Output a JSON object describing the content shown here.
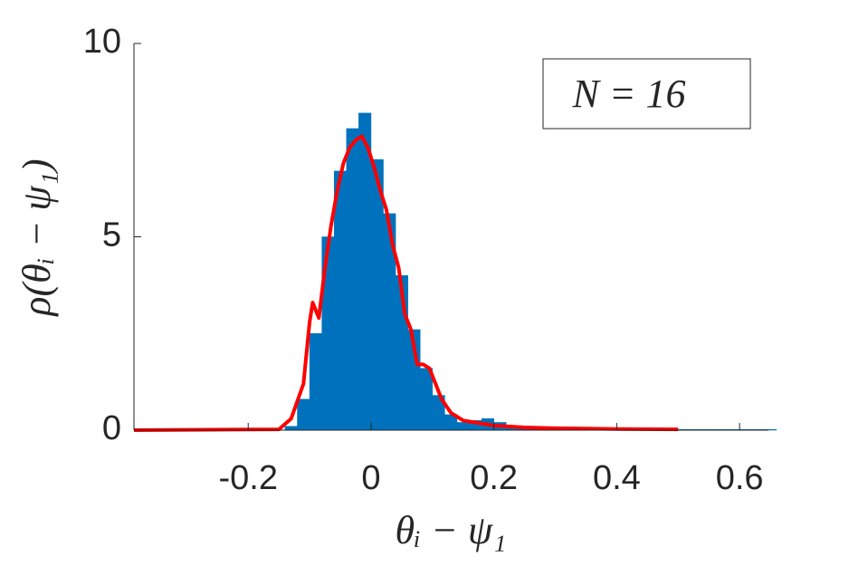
{
  "chart_data": {
    "type": "histogram",
    "xlabel": "θᵢ − ψ₁",
    "ylabel": "ρ(θᵢ − ψ₁)",
    "annotation": "N = 16",
    "bins": [
      -0.14,
      -0.12,
      -0.1,
      -0.08,
      -0.06,
      -0.04,
      -0.02,
      0,
      0.02,
      0.04,
      0.06,
      0.08,
      0.1,
      0.12,
      0.14,
      0.16,
      0.18,
      0.2,
      0.22,
      0.24,
      0.26,
      0.28,
      0.3,
      0.32,
      0.34,
      0.36,
      0.38,
      0.4,
      0.42,
      0.44,
      0.46,
      0.48,
      0.5,
      0.52,
      0.54,
      0.56,
      0.58,
      0.6,
      0.62,
      0.64,
      0.66
    ],
    "values": [
      0.1,
      0.8,
      2.5,
      5.0,
      6.7,
      7.8,
      8.2,
      7.0,
      5.6,
      4.0,
      2.6,
      1.6,
      0.9,
      0.4,
      0.2,
      0.25,
      0.3,
      0.2,
      0.1,
      0.06,
      0.05,
      0.04,
      0.04,
      0.03,
      0.03,
      0.03,
      0.02,
      0.02,
      0.02,
      0.02,
      0.02,
      0.02,
      0.02,
      0.02,
      0.02,
      0.02,
      0.02,
      0.02,
      0.02,
      0.02
    ],
    "color": "#0072bd",
    "line": {
      "color": "#ff0000",
      "x": [
        -0.386,
        -0.15,
        -0.13,
        -0.11,
        -0.1,
        -0.095,
        -0.085,
        -0.075,
        -0.065,
        -0.055,
        -0.045,
        -0.035,
        -0.025,
        -0.015,
        -0.005,
        0.005,
        0.015,
        0.025,
        0.035,
        0.045,
        0.055,
        0.065,
        0.075,
        0.085,
        0.095,
        0.105,
        0.115,
        0.13,
        0.15,
        0.2,
        0.25,
        0.3,
        0.4,
        0.5
      ],
      "values": [
        0,
        0.02,
        0.3,
        1.2,
        2.8,
        3.3,
        2.9,
        4.2,
        5.3,
        6.2,
        6.9,
        7.3,
        7.5,
        7.6,
        7.3,
        6.8,
        6.2,
        5.7,
        4.8,
        4.2,
        3.0,
        2.6,
        1.7,
        1.7,
        1.6,
        1.2,
        0.8,
        0.45,
        0.25,
        0.12,
        0.07,
        0.05,
        0.03,
        0.02
      ]
    },
    "xlim": [
      -0.386,
      0.647
    ],
    "ylim": [
      0,
      10
    ],
    "xticks": [
      -0.2,
      0,
      0.2,
      0.4,
      0.6
    ],
    "yticks": [
      0,
      5,
      10
    ]
  }
}
